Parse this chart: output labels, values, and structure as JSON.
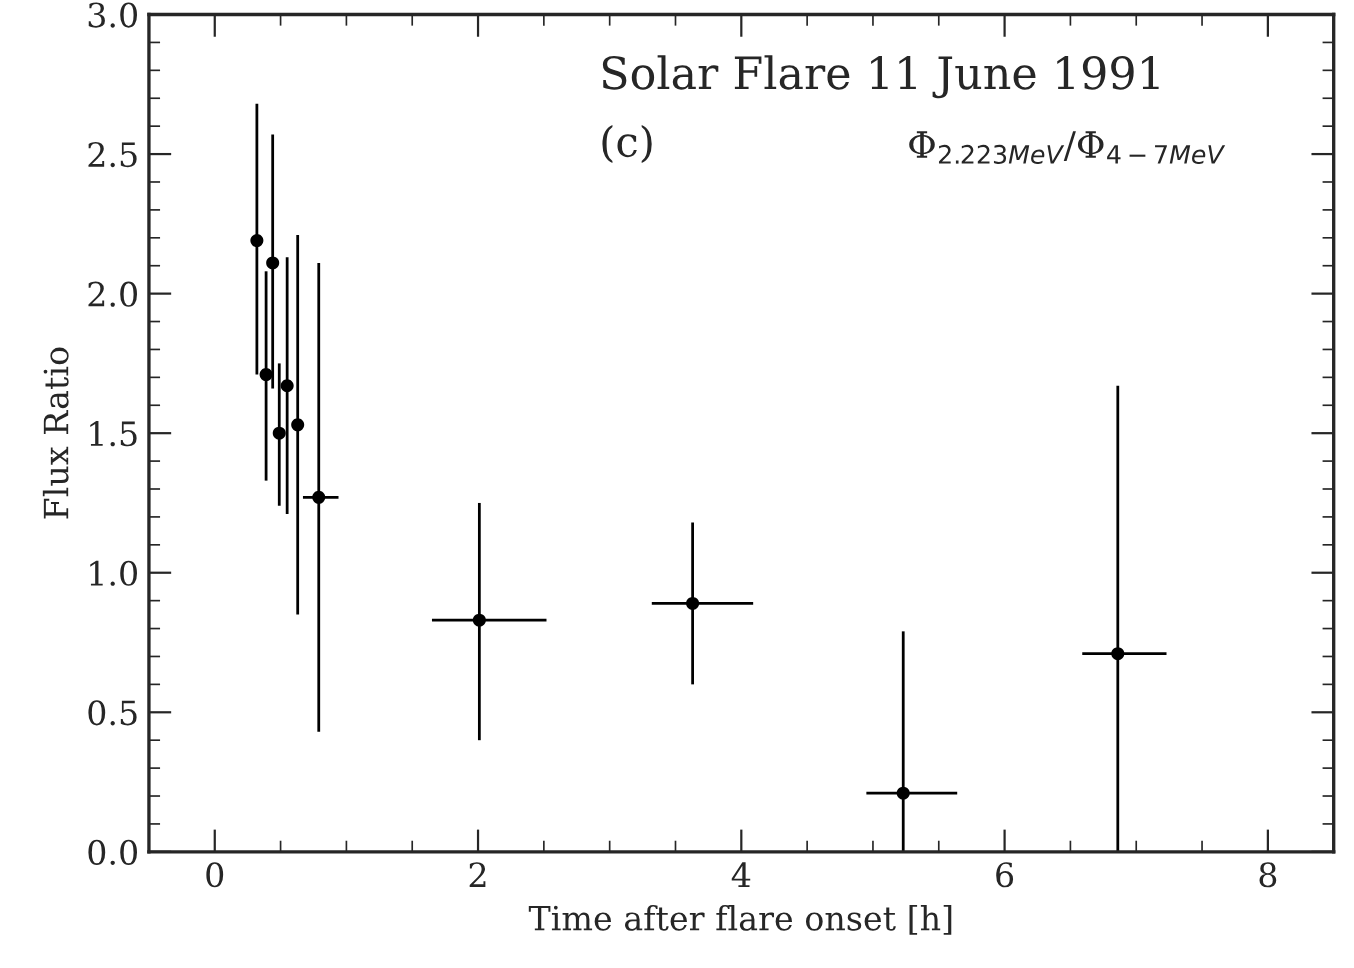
{
  "chart_data": {
    "type": "scatter",
    "xlabel": "Time after flare onset [h]",
    "ylabel": "Flux Ratio",
    "annotations": [
      "Solar Flare 11 June 1991",
      "(c)",
      "Φ$_{2.223MeV}$/Φ$_{4−7MeV}$"
    ],
    "x": [
      0.32,
      0.39,
      0.44,
      0.49,
      0.55,
      0.63,
      0.79,
      2.01,
      3.63,
      5.23,
      6.86
    ],
    "series": [
      {
        "color": "#000000",
        "values": [
          2.19,
          1.71,
          2.11,
          1.5,
          1.67,
          1.53,
          1.27,
          0.83,
          0.89,
          0.21,
          0.71
        ],
        "errors": [
          [
            1.71,
            2.68
          ],
          [
            1.33,
            2.08
          ],
          [
            1.66,
            2.57
          ],
          [
            1.24,
            1.75
          ],
          [
            1.21,
            2.13
          ],
          [
            0.85,
            2.21
          ],
          [
            0.43,
            2.11
          ],
          [
            0.4,
            1.25
          ],
          [
            0.6,
            1.18
          ],
          [
            0,
            0.79
          ],
          [
            0,
            1.67
          ]
        ],
        "xerrors": [
          null,
          null,
          null,
          null,
          null,
          null,
          [
            0.67,
            0.94
          ],
          [
            1.65,
            2.52
          ],
          [
            3.32,
            4.09
          ],
          [
            4.95,
            5.64
          ],
          [
            6.59,
            7.23
          ]
        ]
      }
    ],
    "xlim": [
      -0.5,
      8.5
    ],
    "ylim": [
      0,
      3
    ],
    "xticks": [
      0,
      2,
      4,
      6,
      8
    ],
    "yticks": [
      {
        "value": 0,
        "label": "0.0"
      },
      {
        "value": 0.5,
        "label": "0.5"
      },
      {
        "value": 1,
        "label": "1.0"
      },
      {
        "value": 1.5,
        "label": "1.5"
      },
      {
        "value": 2,
        "label": "2.0"
      },
      {
        "value": 2.5,
        "label": "2.5"
      },
      {
        "value": 3,
        "label": "3.0"
      }
    ],
    "marker": "circle",
    "grid": false
  }
}
